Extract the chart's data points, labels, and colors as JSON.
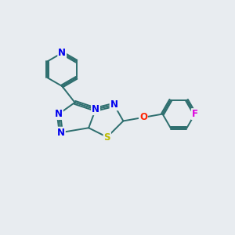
{
  "bg_color": "#e8ecf0",
  "bond_color": "#2d6e6e",
  "N_color": "#0000ee",
  "S_color": "#bbbb00",
  "O_color": "#ff2200",
  "F_color": "#dd00dd",
  "bond_width": 1.4,
  "font_size": 8.5,
  "figsize": [
    3.0,
    3.0
  ],
  "dpi": 100,
  "xlim": [
    0,
    10
  ],
  "ylim": [
    0,
    10
  ]
}
